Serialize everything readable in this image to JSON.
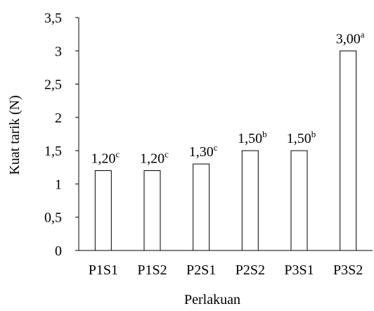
{
  "chart_data": {
    "type": "bar",
    "categories": [
      "P1S1",
      "P1S2",
      "P2S1",
      "P2S2",
      "P3S1",
      "P3S2"
    ],
    "values": [
      1.2,
      1.2,
      1.3,
      1.5,
      1.5,
      3.0
    ],
    "data_labels": [
      "1,20",
      "1,20",
      "1,30",
      "1,50",
      "1,50",
      "3,00"
    ],
    "significance_letters": [
      "c",
      "c",
      "c",
      "b",
      "b",
      "a"
    ],
    "xlabel": "Perlakuan",
    "ylabel": "Kuat tarik (N)",
    "ylim": [
      0,
      3.5
    ],
    "yticks": [
      0,
      0.5,
      1,
      1.5,
      2,
      2.5,
      3,
      3.5
    ],
    "ytick_labels": [
      "0",
      "0,5",
      "1",
      "1,5",
      "2",
      "2,5",
      "3",
      "3,5"
    ],
    "grid": false,
    "legend": "none",
    "bar_fill": "#ffffff",
    "bar_stroke": "#000000"
  }
}
